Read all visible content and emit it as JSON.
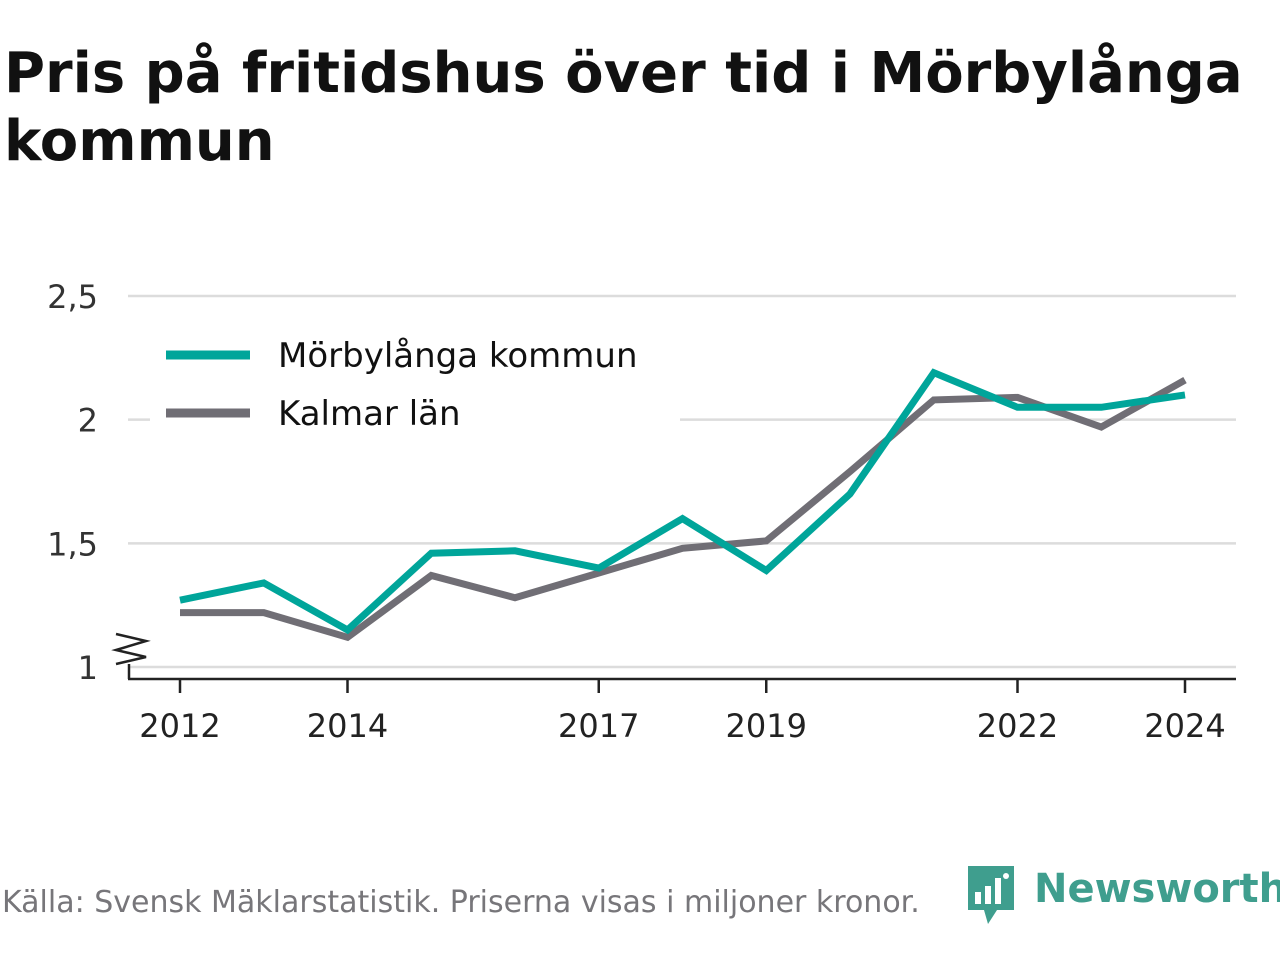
{
  "title": "Pris på fritidshus över tid i Mörbylånga kommun",
  "source": "Källa: Svensk Mäklarstatistik. Priserna visas i miljoner kronor.",
  "brand": "Newsworthy",
  "colors": {
    "morbylanga": "#00a59a",
    "kalmar": "#706e75",
    "grid": "#dcdcdc",
    "axis": "#222222",
    "brand": "#3f9e8e"
  },
  "chart_data": {
    "type": "line",
    "x": [
      2012,
      2013,
      2014,
      2015,
      2016,
      2017,
      2018,
      2019,
      2020,
      2021,
      2022,
      2023,
      2024
    ],
    "series": [
      {
        "name": "Mörbylånga kommun",
        "values": [
          1.27,
          1.34,
          1.15,
          1.46,
          1.47,
          1.4,
          1.6,
          1.39,
          1.7,
          2.19,
          2.05,
          2.05,
          2.1
        ]
      },
      {
        "name": "Kalmar län",
        "values": [
          1.22,
          1.22,
          1.12,
          1.37,
          1.28,
          1.38,
          1.48,
          1.51,
          1.79,
          2.08,
          2.09,
          1.97,
          2.16
        ]
      }
    ],
    "xticks": [
      2012,
      2014,
      2017,
      2019,
      2022,
      2024
    ],
    "yticks": [
      1,
      1.5,
      2,
      2.5
    ],
    "ytick_labels": [
      "1",
      "1,5",
      "2",
      "2,5"
    ],
    "ylim": [
      1,
      2.5
    ],
    "y_axis_break": true,
    "grid": true,
    "legend_position": "top-left"
  }
}
